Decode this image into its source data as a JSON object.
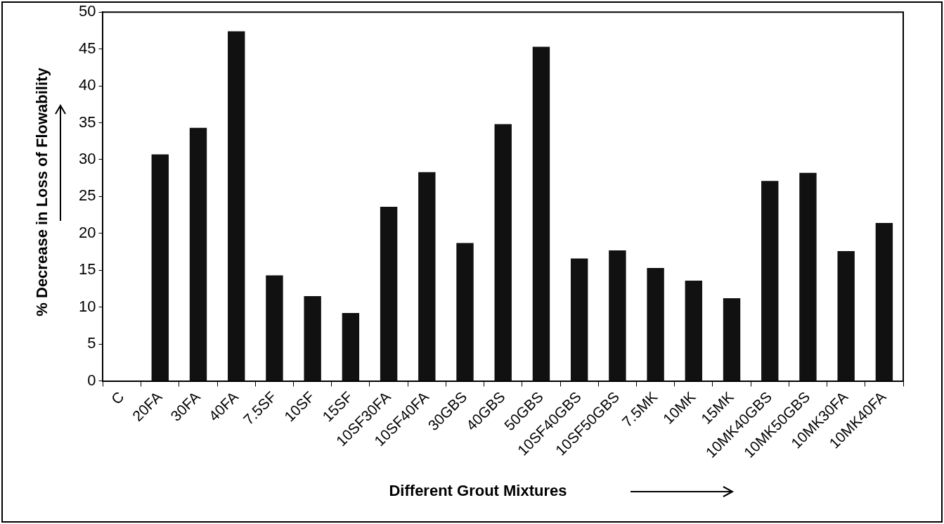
{
  "chart_data": {
    "type": "bar",
    "xlabel": "Different Grout Mixtures",
    "ylabel": "% Decrease in Loss of Flowability",
    "categories": [
      "C",
      "20FA",
      "30FA",
      "40FA",
      "7.5SF",
      "10SF",
      "15SF",
      "10SF30FA",
      "10SF40FA",
      "30GBS",
      "40GBS",
      "50GBS",
      "10SF40GBS",
      "10SF50GBS",
      "7.5MK",
      "10MK",
      "15MK",
      "10MK40GBS",
      "10MK50GBS",
      "10MK30FA",
      "10MK40FA"
    ],
    "values": [
      0,
      30.7,
      34.3,
      47.4,
      14.3,
      11.5,
      9.2,
      23.6,
      28.3,
      18.7,
      34.8,
      45.3,
      16.6,
      17.7,
      15.3,
      13.6,
      11.2,
      27.1,
      28.2,
      17.6,
      21.4
    ],
    "color": "#111111",
    "ylim": [
      0,
      50
    ],
    "yticks": [
      0,
      5,
      10,
      15,
      20,
      25,
      30,
      35,
      40,
      45,
      50
    ],
    "grid": false,
    "legend": false
  }
}
